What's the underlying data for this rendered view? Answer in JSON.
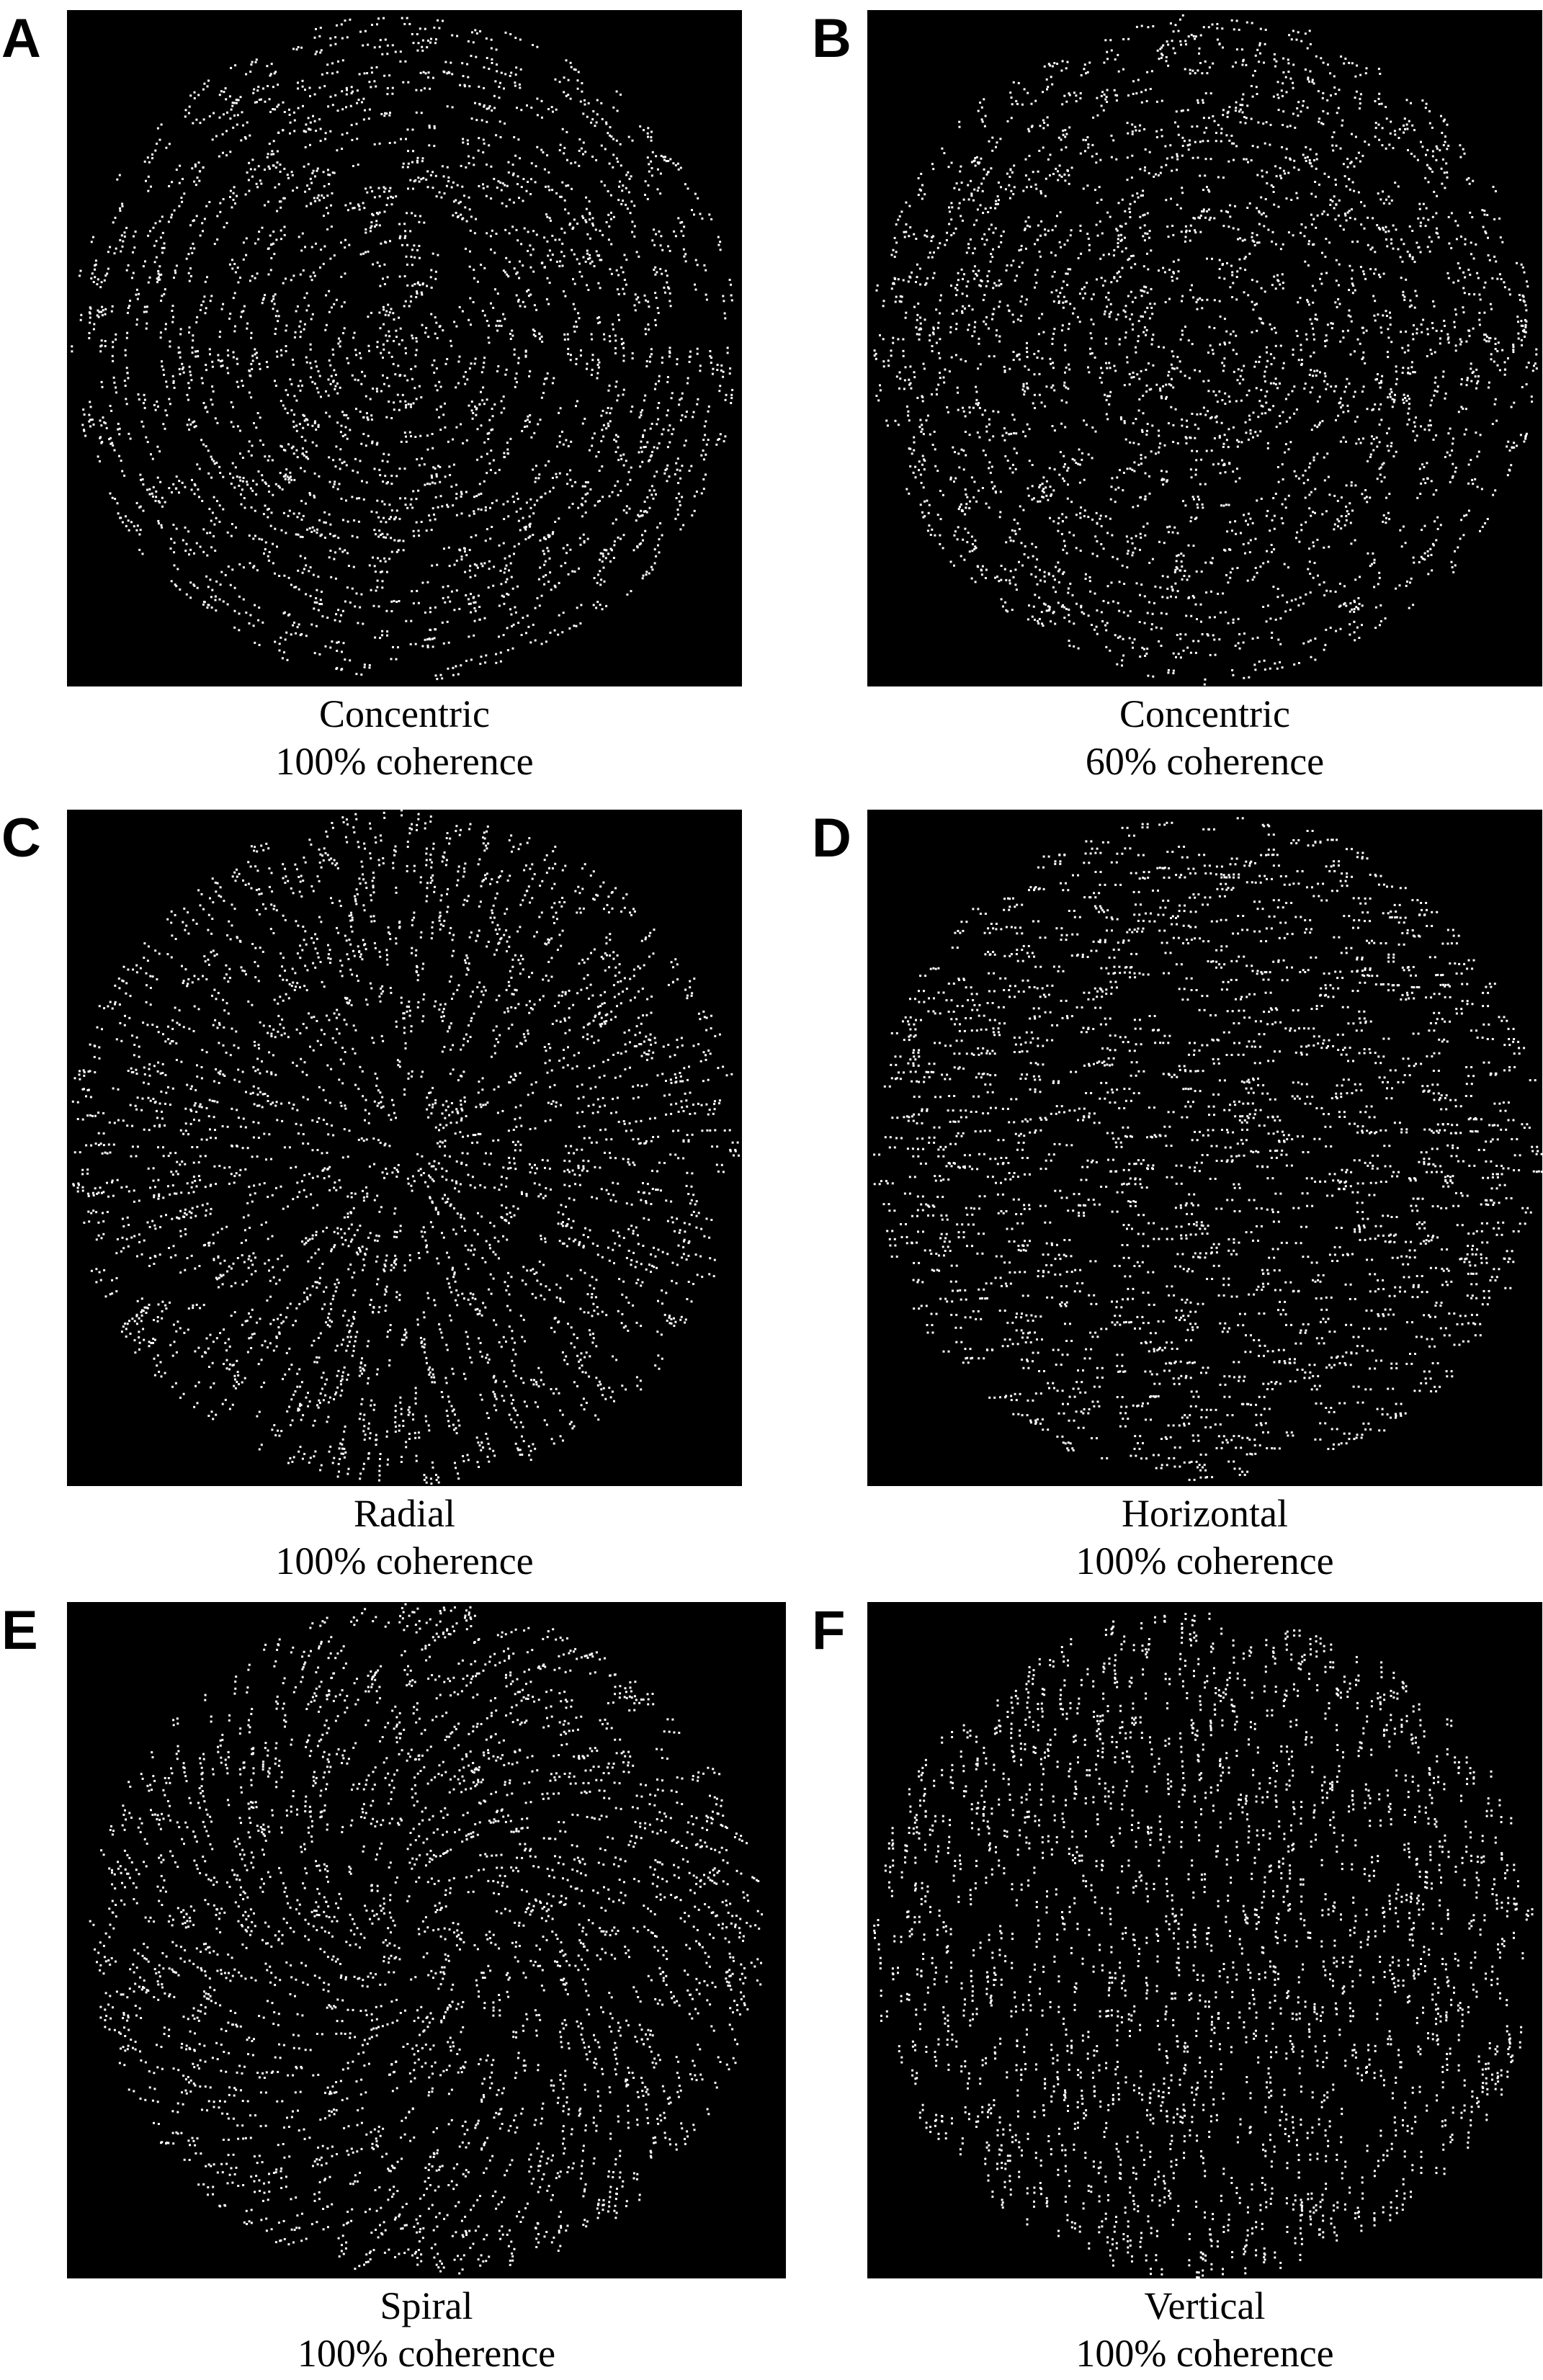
{
  "panels": [
    {
      "id": "A",
      "letter": "A",
      "pattern": "concentric",
      "coherence": 1.0,
      "title": "Concentric",
      "subtitle": "100% coherence"
    },
    {
      "id": "B",
      "letter": "B",
      "pattern": "concentric",
      "coherence": 0.6,
      "title": "Concentric",
      "subtitle": "60% coherence"
    },
    {
      "id": "C",
      "letter": "C",
      "pattern": "radial",
      "coherence": 1.0,
      "title": "Radial",
      "subtitle": "100% coherence"
    },
    {
      "id": "D",
      "letter": "D",
      "pattern": "horizontal",
      "coherence": 1.0,
      "title": "Horizontal",
      "subtitle": "100% coherence"
    },
    {
      "id": "E",
      "letter": "E",
      "pattern": "spiral",
      "coherence": 1.0,
      "title": "Spiral",
      "subtitle": "100% coherence"
    },
    {
      "id": "F",
      "letter": "F",
      "pattern": "vertical",
      "coherence": 1.0,
      "title": "Vertical",
      "subtitle": "100% coherence"
    }
  ],
  "colors": {
    "background": "#000000",
    "dots": "#ffffff",
    "text": "#000000"
  }
}
